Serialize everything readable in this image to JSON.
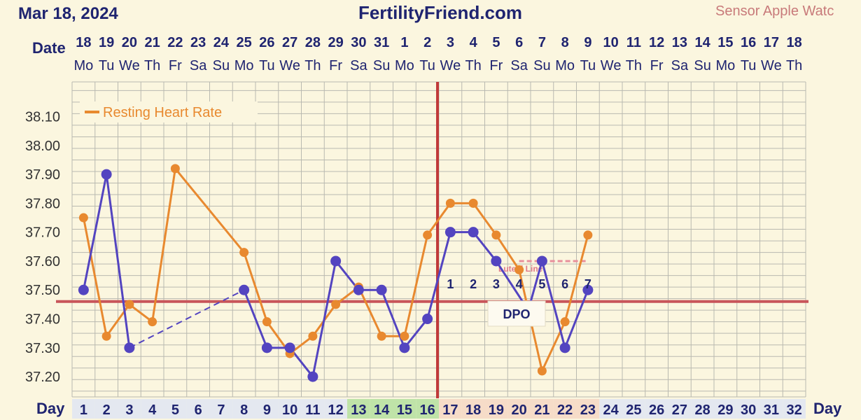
{
  "header": {
    "date": "Mar 18, 2024",
    "site": "FertilityFriend.com",
    "sensor": "Sensor Apple Watc"
  },
  "colors": {
    "bg": "#fbf6df",
    "grid": "#b9b9b0",
    "temp": "#5344c0",
    "rhr": "#e8892f",
    "coverline": "#c8555a",
    "ovulation": "#c03a3a",
    "fertile": "#bfe3a8",
    "luteal_cell": "#f6dcc8",
    "day_cell": "#e4e8f0",
    "luteal_line": "#e8909c"
  },
  "chart_data": {
    "type": "line",
    "title": "",
    "labels": {
      "date_axis": "Date",
      "day_axis": "Day",
      "dpo": "DPO",
      "luteal": "Luteal Line"
    },
    "dates": [
      "18",
      "19",
      "20",
      "21",
      "22",
      "23",
      "24",
      "25",
      "26",
      "27",
      "28",
      "29",
      "30",
      "31",
      "1",
      "2",
      "3",
      "4",
      "5",
      "6",
      "7",
      "8",
      "9",
      "10",
      "11",
      "12",
      "13",
      "14",
      "15",
      "16",
      "17",
      "18"
    ],
    "weekdays": [
      "Mo",
      "Tu",
      "We",
      "Th",
      "Fr",
      "Sa",
      "Su",
      "Mo",
      "Tu",
      "We",
      "Th",
      "Fr",
      "Sa",
      "Su",
      "Mo",
      "Tu",
      "We",
      "Th",
      "Fr",
      "Sa",
      "Su",
      "Mo",
      "Tu",
      "We",
      "Th",
      "Fr",
      "Sa",
      "Su",
      "Mo",
      "Tu",
      "We",
      "Th"
    ],
    "cycle_days": [
      1,
      2,
      3,
      4,
      5,
      6,
      7,
      8,
      9,
      10,
      11,
      12,
      13,
      14,
      15,
      16,
      17,
      18,
      19,
      20,
      21,
      22,
      23,
      24,
      25,
      26,
      27,
      28,
      29,
      30,
      31,
      32
    ],
    "fertile_days": [
      13,
      14,
      15,
      16
    ],
    "luteal_days": [
      17,
      18,
      19,
      20,
      21,
      22,
      23
    ],
    "y_ticks": [
      "38.10",
      "38.00",
      "37.90",
      "37.80",
      "37.70",
      "37.60",
      "37.50",
      "37.40",
      "37.30",
      "37.20"
    ],
    "ylim": [
      37.13,
      38.22
    ],
    "coverline": 37.46,
    "ovulation_day": 16,
    "series": [
      {
        "name": "",
        "points": [
          {
            "day": 1,
            "value": 37.5
          },
          {
            "day": 2,
            "value": 37.9
          },
          {
            "day": 3,
            "value": 37.3
          },
          {
            "day": 8,
            "value": 37.5
          },
          {
            "day": 9,
            "value": 37.3
          },
          {
            "day": 10,
            "value": 37.3
          },
          {
            "day": 11,
            "value": 37.2
          },
          {
            "day": 12,
            "value": 37.6
          },
          {
            "day": 13,
            "value": 37.5
          },
          {
            "day": 14,
            "value": 37.5
          },
          {
            "day": 15,
            "value": 37.3
          },
          {
            "day": 16,
            "value": 37.4
          },
          {
            "day": 17,
            "value": 37.7
          },
          {
            "day": 18,
            "value": 37.7
          },
          {
            "day": 19,
            "value": 37.6
          },
          {
            "day": 21,
            "value": 37.6
          },
          {
            "day": 22,
            "value": 37.3
          },
          {
            "day": 23,
            "value": 37.5
          }
        ],
        "dashed_gaps": [
          [
            3,
            8
          ]
        ],
        "line_only": [
          [
            19,
            20.4
          ],
          [
            20.4,
            21
          ]
        ]
      },
      {
        "name": "Resting Heart Rate",
        "points": [
          {
            "day": 1,
            "value": 37.75
          },
          {
            "day": 2,
            "value": 37.34
          },
          {
            "day": 3,
            "value": 37.45
          },
          {
            "day": 4,
            "value": 37.39
          },
          {
            "day": 5,
            "value": 37.92
          },
          {
            "day": 8,
            "value": 37.63
          },
          {
            "day": 9,
            "value": 37.39
          },
          {
            "day": 10,
            "value": 37.28
          },
          {
            "day": 11,
            "value": 37.34
          },
          {
            "day": 12,
            "value": 37.45
          },
          {
            "day": 13,
            "value": 37.51
          },
          {
            "day": 14,
            "value": 37.34
          },
          {
            "day": 15,
            "value": 37.34
          },
          {
            "day": 16,
            "value": 37.69
          },
          {
            "day": 17,
            "value": 37.8
          },
          {
            "day": 18,
            "value": 37.8
          },
          {
            "day": 19,
            "value": 37.69
          },
          {
            "day": 20,
            "value": 37.57
          },
          {
            "day": 21,
            "value": 37.22
          },
          {
            "day": 22,
            "value": 37.39
          },
          {
            "day": 23,
            "value": 37.69
          }
        ]
      }
    ],
    "dpo_numbers": [
      "1",
      "2",
      "3",
      "4",
      "5",
      "6",
      "7"
    ],
    "luteal_line": {
      "from_day": 20,
      "to_day": 23,
      "value": 37.6
    }
  }
}
